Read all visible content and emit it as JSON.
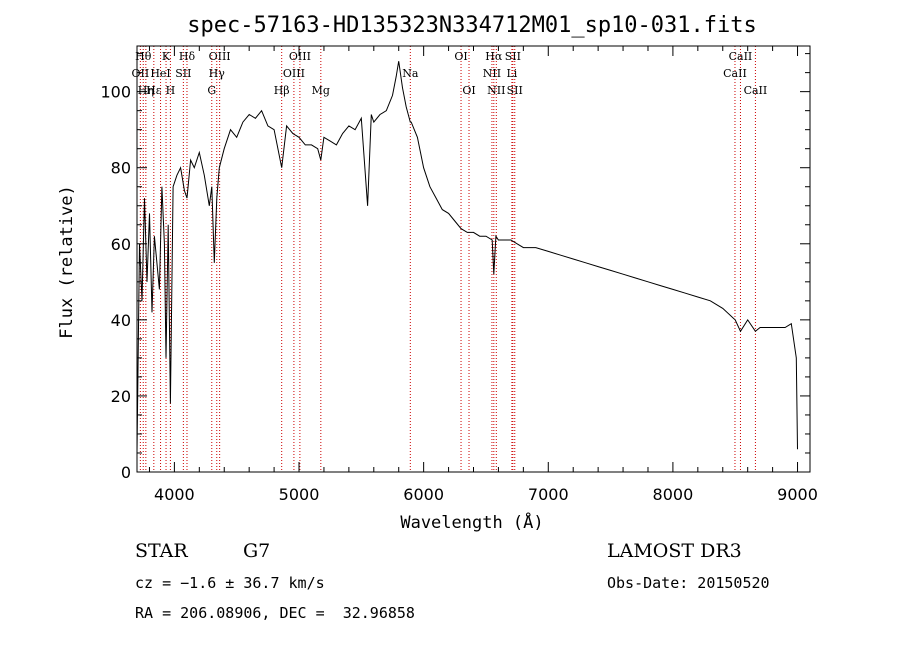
{
  "chart_data": {
    "type": "line",
    "title": "spec-57163-HD135323N334712M01_sp10-031.fits",
    "xlabel": "Wavelength (Å)",
    "ylabel": "Flux (relative)",
    "xlim": [
      3700,
      9100
    ],
    "ylim": [
      0,
      112
    ],
    "xticks": [
      4000,
      5000,
      6000,
      7000,
      8000,
      9000
    ],
    "yticks": [
      0,
      20,
      40,
      60,
      80,
      100
    ],
    "grid": false,
    "line_color": "#000000",
    "marker_color": "#cc0000",
    "series": [
      {
        "x": [
          3700,
          3720,
          3740,
          3760,
          3780,
          3800,
          3820,
          3840,
          3860,
          3880,
          3900,
          3920,
          3933,
          3950,
          3968,
          3990,
          4020,
          4050,
          4080,
          4101,
          4130,
          4160,
          4200,
          4240,
          4280,
          4300,
          4320,
          4340,
          4360,
          4400,
          4450,
          4500,
          4550,
          4600,
          4650,
          4700,
          4750,
          4800,
          4861,
          4900,
          4950,
          5000,
          5050,
          5100,
          5150,
          5175,
          5200,
          5250,
          5300,
          5350,
          5400,
          5450,
          5500,
          5550,
          5580,
          5600,
          5650,
          5700,
          5750,
          5780,
          5800,
          5830,
          5860,
          5893,
          5900,
          5950,
          6000,
          6050,
          6100,
          6150,
          6200,
          6250,
          6300,
          6350,
          6400,
          6450,
          6500,
          6550,
          6563,
          6580,
          6600,
          6650,
          6700,
          6750,
          6800,
          6900,
          7000,
          7100,
          7200,
          7300,
          7400,
          7500,
          7600,
          7700,
          7800,
          7900,
          8000,
          8100,
          8200,
          8300,
          8400,
          8500,
          8542,
          8600,
          8662,
          8700,
          8800,
          8900,
          8950,
          8990,
          9000
        ],
        "y": [
          5,
          60,
          45,
          72,
          50,
          68,
          42,
          62,
          55,
          48,
          75,
          60,
          30,
          65,
          18,
          75,
          78,
          80,
          74,
          72,
          82,
          80,
          84,
          78,
          70,
          75,
          55,
          72,
          80,
          85,
          90,
          88,
          92,
          94,
          93,
          95,
          91,
          90,
          80,
          91,
          89,
          88,
          86,
          86,
          85,
          82,
          88,
          87,
          86,
          89,
          91,
          90,
          93,
          70,
          94,
          92,
          94,
          95,
          99,
          104,
          108,
          101,
          96,
          92,
          92,
          88,
          80,
          75,
          72,
          69,
          68,
          66,
          64,
          63,
          63,
          62,
          62,
          61,
          52,
          62,
          61,
          61,
          61,
          60,
          59,
          59,
          58,
          57,
          56,
          55,
          54,
          53,
          52,
          51,
          50,
          49,
          48,
          47,
          46,
          45,
          43,
          40,
          37,
          40,
          37,
          38,
          38,
          38,
          39,
          30,
          6
        ]
      }
    ],
    "lines": [
      {
        "wl": 3727,
        "label": "OII",
        "row": 2
      },
      {
        "wl": 3750,
        "label": "Hθ",
        "row": 1
      },
      {
        "wl": 3771,
        "label": "Hη",
        "row": 3
      },
      {
        "wl": 3835,
        "label": "Hε",
        "row": 3
      },
      {
        "wl": 3889,
        "label": "HeI",
        "row": 2
      },
      {
        "wl": 3933,
        "label": "K",
        "row": 1
      },
      {
        "wl": 3968,
        "label": "H",
        "row": 3
      },
      {
        "wl": 4072,
        "label": "SII",
        "row": 2
      },
      {
        "wl": 4101,
        "label": "Hδ",
        "row": 1
      },
      {
        "wl": 4300,
        "label": "G",
        "row": 3
      },
      {
        "wl": 4340,
        "label": "Hγ",
        "row": 2
      },
      {
        "wl": 4363,
        "label": "OIII",
        "row": 1
      },
      {
        "wl": 4861,
        "label": "Hβ",
        "row": 3
      },
      {
        "wl": 4959,
        "label": "OIII",
        "row": 2
      },
      {
        "wl": 5007,
        "label": "OIII",
        "row": 1
      },
      {
        "wl": 5175,
        "label": "Mg",
        "row": 3
      },
      {
        "wl": 5893,
        "label": "Na",
        "row": 2
      },
      {
        "wl": 6300,
        "label": "OI",
        "row": 1
      },
      {
        "wl": 6364,
        "label": "OI",
        "row": 3
      },
      {
        "wl": 6548,
        "label": "NII",
        "row": 2
      },
      {
        "wl": 6563,
        "label": "Hα",
        "row": 1
      },
      {
        "wl": 6583,
        "label": "NII",
        "row": 3
      },
      {
        "wl": 6708,
        "label": "Li",
        "row": 2
      },
      {
        "wl": 6716,
        "label": "SII",
        "row": 1
      },
      {
        "wl": 6731,
        "label": "SII",
        "row": 3
      },
      {
        "wl": 8498,
        "label": "CaII",
        "row": 2
      },
      {
        "wl": 8542,
        "label": "CaII",
        "row": 1
      },
      {
        "wl": 8662,
        "label": "CaII",
        "row": 3
      }
    ]
  },
  "info": {
    "object_class": "STAR",
    "subclass": "G7",
    "survey": "LAMOST DR3",
    "cz": "cz = −1.6 ± 36.7 km/s",
    "obs_date": "Obs-Date: 20150520",
    "coords": "RA = 206.08906, DEC =  32.96858"
  }
}
